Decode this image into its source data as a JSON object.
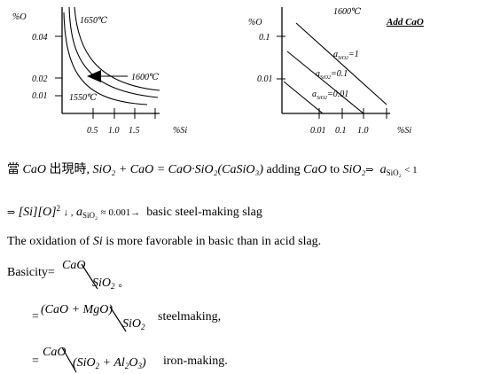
{
  "left_chart": {
    "y_axis_label": "%O",
    "x_axis_label": "%Si",
    "y_ticks": [
      "0.04",
      "0.02",
      "0.01"
    ],
    "x_ticks": [
      "0.5",
      "1.0",
      "1.5"
    ],
    "curve_label_top": "1650℃",
    "curve_label_mid": "1600℃",
    "curve_label_bottom": "1550℃"
  },
  "right_chart": {
    "y_axis_label": "%O",
    "x_axis_label": "%Si",
    "temperature": "1600℃",
    "title": "Add CaO",
    "y_ticks": [
      "0.1",
      "0.01"
    ],
    "x_ticks": [
      "0.01",
      "0.1",
      "1.0"
    ],
    "line_labels": [
      "a_SiO2=1",
      "a_SiO2=0.1",
      "a_SiO2=0.01"
    ],
    "label_a": "a",
    "label_sub": "SiO2",
    "label_vals": [
      "=1",
      "=0.1",
      "=0.01"
    ]
  },
  "text": {
    "line1_prefix": "當",
    "line1_cao": "CaO",
    "line1_mid": "出現時,",
    "line1_equation": "SiO₂ + CaO = CaO·SiO₂(CaSiO₃)",
    "line1_adding": "adding",
    "line1_cao2": "CaO",
    "line1_to": "to",
    "line1_sio2": "SiO₂",
    "line1_arrow": "⇒",
    "line1_a": "a",
    "line1_a_sub": "SiO₂",
    "line1_lt1": "< 1",
    "line2_arrow": "⇒",
    "line2_si": "[Si][O]",
    "line2_sq": "2",
    "line2_down": "↓ ,",
    "line2_a": "a",
    "line2_a_sub": "SiO₂",
    "line2_approx": "≈ 0.001→",
    "line2_text": "basic steel-making slag",
    "line3_pre": "The oxidation of",
    "line3_si": "Si",
    "line3_post": "is more favorable in basic than in acid slag.",
    "basicity_label": "Basicity=",
    "basicity_num": "CaO",
    "basicity_den": "SiO",
    "basicity_den_sub": "2",
    "basicity_end": "。",
    "steel_eq": "=",
    "steel_num": "(CaO + MgO)",
    "steel_den": "SiO",
    "steel_den_sub": "2",
    "steel_text": "steelmaking,",
    "iron_eq": "=",
    "iron_num": "CaO",
    "iron_den": "(SiO",
    "iron_den_sub1": "2",
    "iron_den_mid": " + Al",
    "iron_den_sub2": "2",
    "iron_den_o": "O",
    "iron_den_sub3": "3",
    "iron_den_end": ")",
    "iron_text": "iron-making."
  }
}
